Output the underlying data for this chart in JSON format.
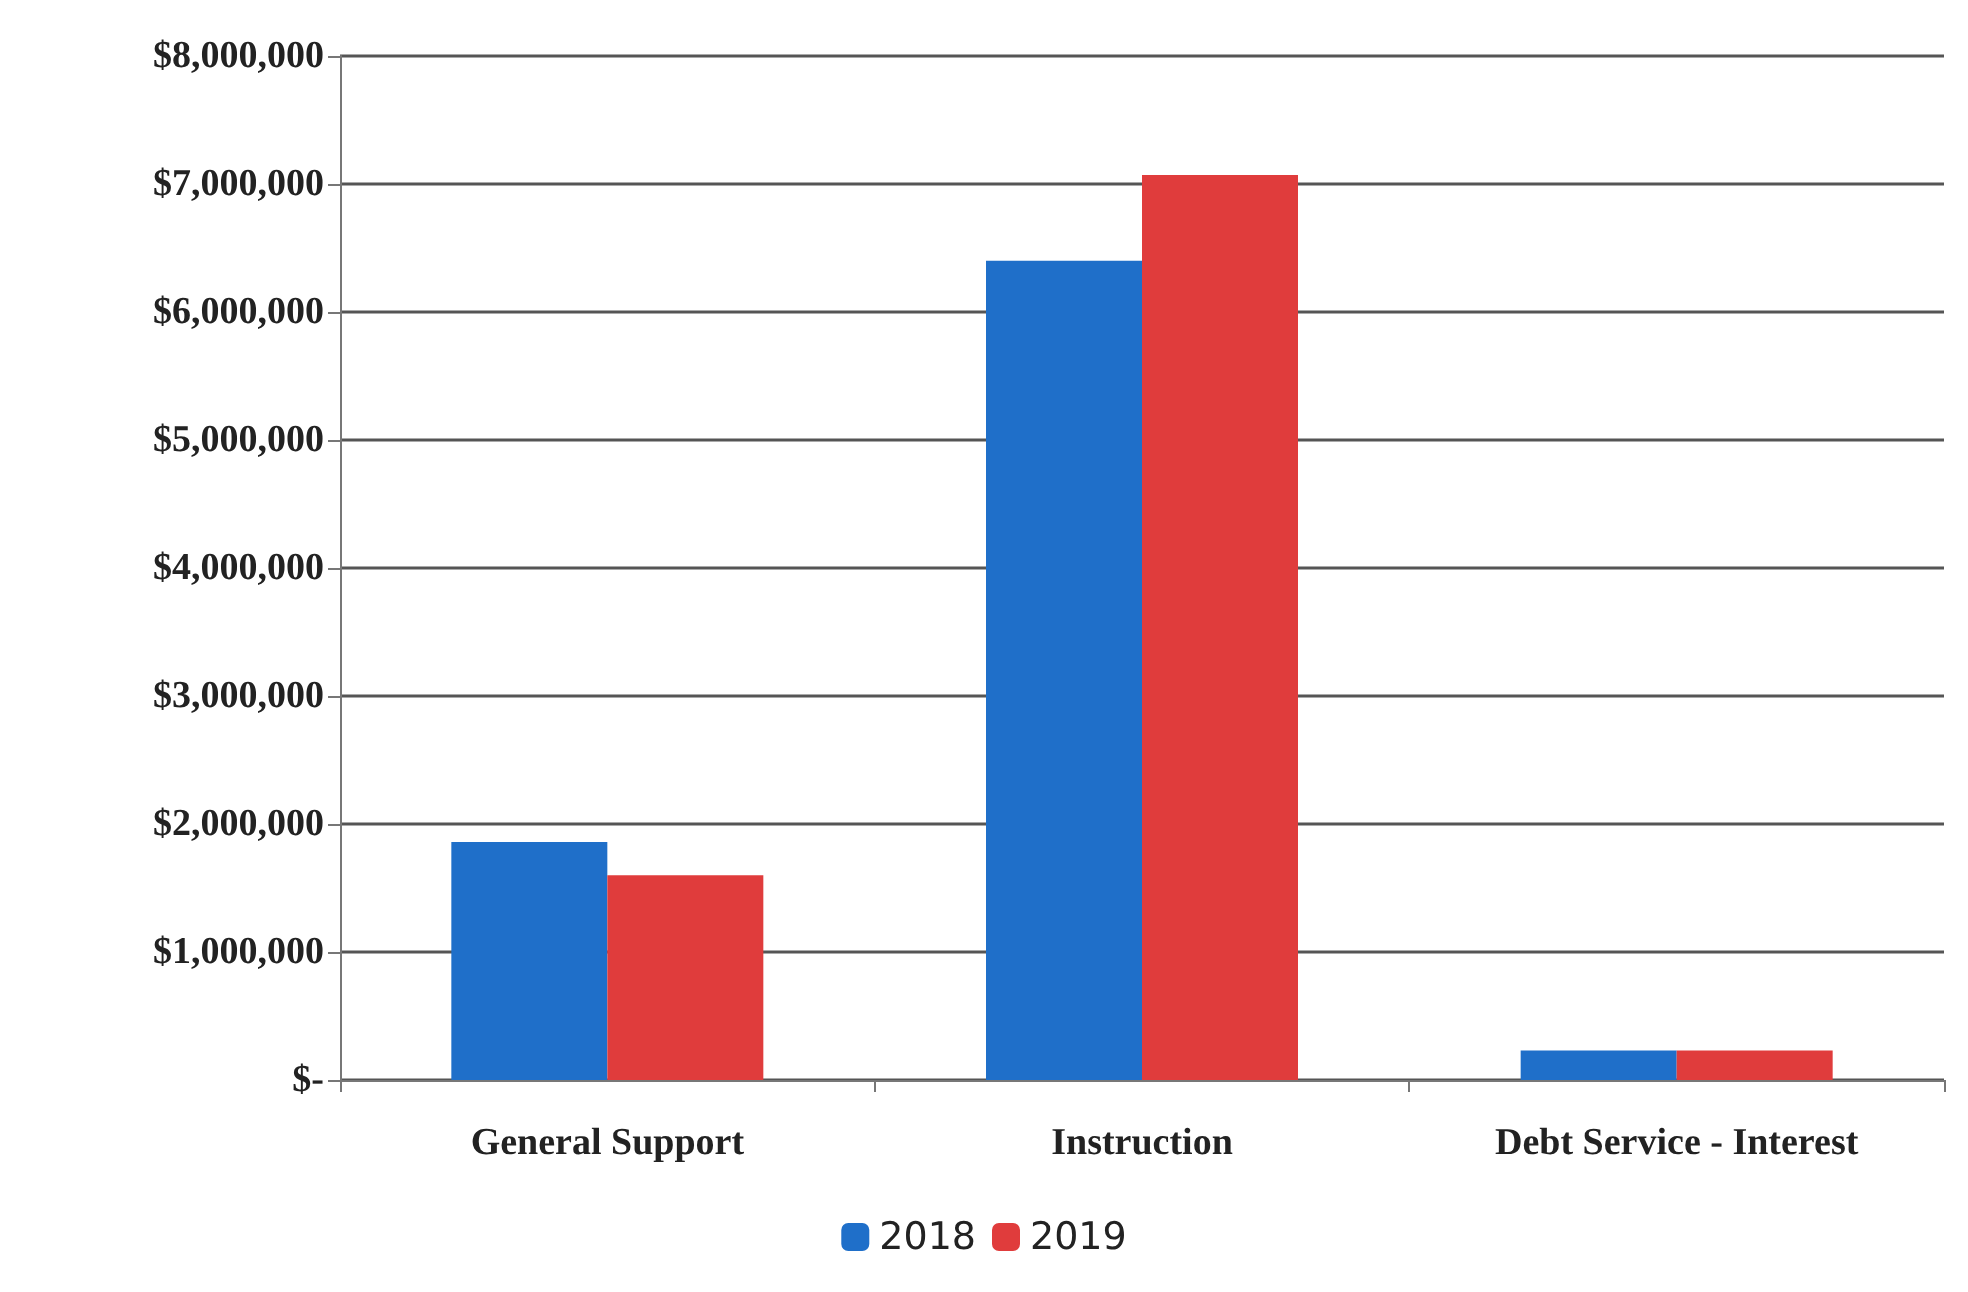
{
  "chart_data": {
    "type": "bar",
    "categories": [
      "General Support",
      "Instruction",
      "Debt Service - Interest"
    ],
    "series": [
      {
        "name": "2018",
        "color": "#1f6fc9",
        "values": [
          1860000,
          6400000,
          230000
        ]
      },
      {
        "name": "2019",
        "color": "#e03c3c",
        "values": [
          1600000,
          7070000,
          230000
        ]
      }
    ],
    "ylim": [
      0,
      8000000
    ],
    "yticks": [
      {
        "value": 0,
        "label": "$-"
      },
      {
        "value": 1000000,
        "label": "$1,000,000"
      },
      {
        "value": 2000000,
        "label": "$2,000,000"
      },
      {
        "value": 3000000,
        "label": "$3,000,000"
      },
      {
        "value": 4000000,
        "label": "$4,000,000"
      },
      {
        "value": 5000000,
        "label": "$5,000,000"
      },
      {
        "value": 6000000,
        "label": "$6,000,000"
      },
      {
        "value": 7000000,
        "label": "$7,000,000"
      },
      {
        "value": 8000000,
        "label": "$8,000,000"
      }
    ],
    "grid": "y",
    "legend": "bottom"
  }
}
